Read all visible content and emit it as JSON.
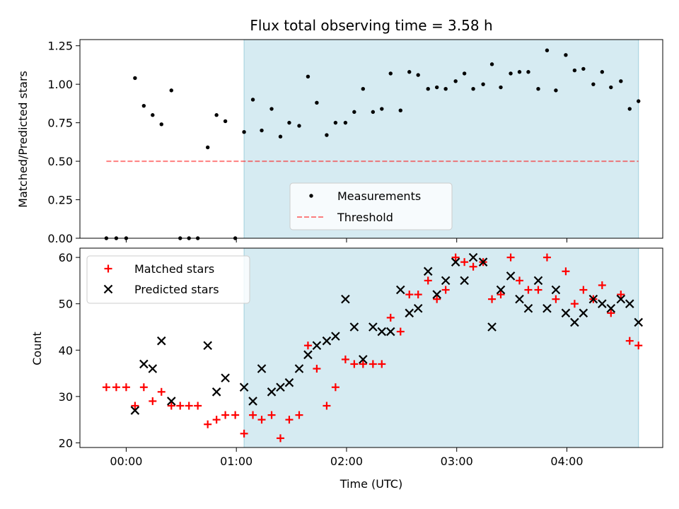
{
  "chart_data": [
    {
      "type": "scatter",
      "title": "Flux total observing time = 3.58 h",
      "xlabel": "",
      "ylabel": "Matched/Predicted stars",
      "ylim": [
        0,
        1.29
      ],
      "yticks": [
        "0.00",
        "0.25",
        "0.50",
        "0.75",
        "1.00",
        "1.25"
      ],
      "ytick_values": [
        0,
        0.25,
        0.5,
        0.75,
        1.0,
        1.25
      ],
      "shaded_region_x": [
        1.07,
        4.65
      ],
      "threshold": 0.5,
      "threshold_x": [
        -0.18,
        4.65
      ],
      "legend": {
        "placement": "bottom-center",
        "entries": [
          "Measurements",
          "Threshold"
        ]
      },
      "series": [
        {
          "name": "Measurements",
          "x": [
            -0.18,
            -0.09,
            0.0,
            0.08,
            0.16,
            0.24,
            0.32,
            0.41,
            0.49,
            0.57,
            0.65,
            0.74,
            0.82,
            0.9,
            0.99,
            1.07,
            1.15,
            1.23,
            1.32,
            1.4,
            1.48,
            1.57,
            1.65,
            1.73,
            1.82,
            1.9,
            1.99,
            2.07,
            2.15,
            2.24,
            2.32,
            2.4,
            2.49,
            2.57,
            2.65,
            2.74,
            2.82,
            2.9,
            2.99,
            3.07,
            3.15,
            3.24,
            3.32,
            3.4,
            3.49,
            3.57,
            3.65,
            3.74,
            3.82,
            3.9,
            3.99,
            4.07,
            4.15,
            4.24,
            4.32,
            4.4,
            4.49,
            4.57,
            4.65
          ],
          "y": [
            0,
            0,
            0,
            1.04,
            0.86,
            0.8,
            0.74,
            0.96,
            0,
            0,
            0,
            0.59,
            0.8,
            0.76,
            0,
            0.69,
            0.9,
            0.7,
            0.84,
            0.66,
            0.75,
            0.73,
            1.05,
            0.88,
            0.67,
            0.75,
            0.75,
            0.82,
            0.97,
            0.82,
            0.84,
            1.07,
            0.83,
            1.08,
            1.06,
            0.97,
            0.98,
            0.97,
            1.02,
            1.07,
            0.97,
            1.0,
            1.13,
            0.98,
            1.07,
            1.08,
            1.08,
            0.97,
            1.22,
            0.96,
            1.19,
            1.09,
            1.1,
            1.0,
            1.08,
            0.98,
            1.02,
            0.84,
            0.89
          ]
        },
        {
          "name": "Threshold",
          "x": [
            -0.18,
            4.65
          ],
          "y": [
            0.5,
            0.5
          ]
        }
      ]
    },
    {
      "type": "scatter",
      "title": "",
      "xlabel": "Time (UTC)",
      "ylabel": "Count",
      "ylim": [
        19,
        62
      ],
      "xlim": [
        -0.42,
        4.87
      ],
      "xticks": [
        "00:00",
        "01:00",
        "02:00",
        "03:00",
        "04:00"
      ],
      "xtick_values": [
        0,
        1,
        2,
        3,
        4
      ],
      "yticks": [
        "20",
        "30",
        "40",
        "50",
        "60"
      ],
      "ytick_values": [
        20,
        30,
        40,
        50,
        60
      ],
      "shaded_region_x": [
        1.07,
        4.65
      ],
      "legend": {
        "placement": "top-left",
        "entries": [
          "Matched stars",
          "Predicted stars"
        ]
      },
      "series": [
        {
          "name": "Matched stars",
          "x": [
            -0.18,
            -0.09,
            0.0,
            0.08,
            0.16,
            0.24,
            0.32,
            0.41,
            0.49,
            0.57,
            0.65,
            0.74,
            0.82,
            0.9,
            0.99,
            1.07,
            1.15,
            1.23,
            1.32,
            1.4,
            1.48,
            1.57,
            1.65,
            1.73,
            1.82,
            1.9,
            1.99,
            2.07,
            2.15,
            2.24,
            2.32,
            2.4,
            2.49,
            2.57,
            2.65,
            2.74,
            2.82,
            2.9,
            2.99,
            3.07,
            3.15,
            3.24,
            3.32,
            3.4,
            3.49,
            3.57,
            3.65,
            3.74,
            3.82,
            3.9,
            3.99,
            4.07,
            4.15,
            4.24,
            4.32,
            4.4,
            4.49,
            4.57,
            4.65
          ],
          "y": [
            32,
            32,
            32,
            28,
            32,
            29,
            31,
            28,
            28,
            28,
            28,
            24,
            25,
            26,
            26,
            22,
            26,
            25,
            26,
            21,
            25,
            26,
            41,
            36,
            28,
            32,
            38,
            37,
            37,
            37,
            37,
            47,
            44,
            52,
            52,
            55,
            51,
            53,
            60,
            59,
            58,
            59,
            51,
            52,
            60,
            55,
            53,
            53,
            60,
            51,
            57,
            50,
            53,
            51,
            54,
            48,
            52,
            42,
            41
          ]
        },
        {
          "name": "Predicted stars",
          "x": [
            0.08,
            0.16,
            0.24,
            0.32,
            0.41,
            0.74,
            0.82,
            0.9,
            1.07,
            1.15,
            1.23,
            1.32,
            1.4,
            1.48,
            1.57,
            1.65,
            1.73,
            1.82,
            1.9,
            1.99,
            2.07,
            2.15,
            2.24,
            2.32,
            2.4,
            2.49,
            2.57,
            2.65,
            2.74,
            2.82,
            2.9,
            2.99,
            3.07,
            3.15,
            3.24,
            3.32,
            3.4,
            3.49,
            3.57,
            3.65,
            3.74,
            3.82,
            3.9,
            3.99,
            4.07,
            4.15,
            4.24,
            4.32,
            4.4,
            4.49,
            4.57,
            4.65
          ],
          "y": [
            27,
            37,
            36,
            42,
            29,
            41,
            31,
            34,
            32,
            29,
            36,
            31,
            32,
            33,
            36,
            39,
            41,
            42,
            43,
            51,
            45,
            38,
            45,
            44,
            44,
            53,
            48,
            49,
            57,
            52,
            55,
            59,
            55,
            60,
            59,
            45,
            53,
            56,
            51,
            49,
            55,
            49,
            53,
            48,
            46,
            48,
            51,
            50,
            49,
            51,
            50,
            46
          ]
        }
      ]
    }
  ]
}
